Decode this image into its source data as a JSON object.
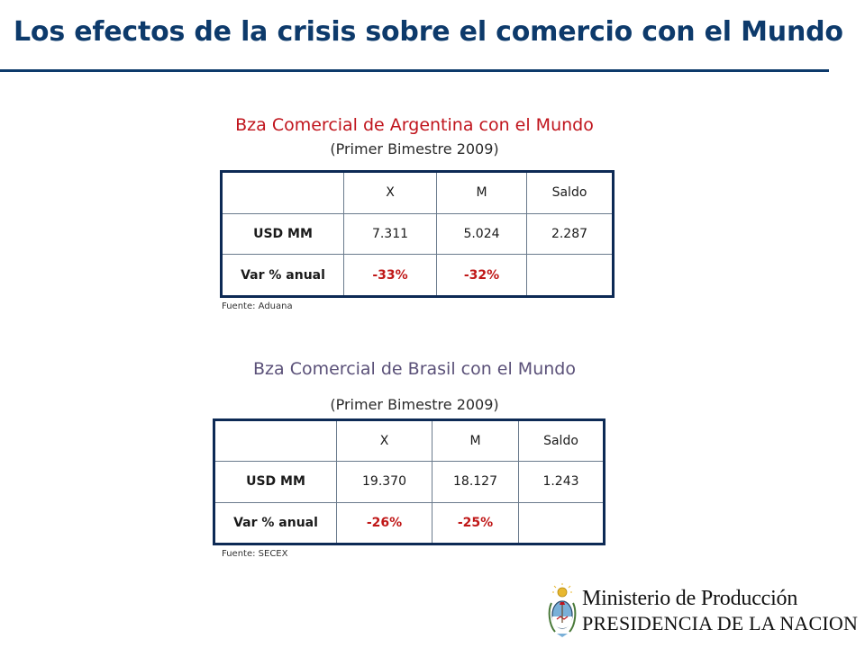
{
  "slide": {
    "title": "Los efectos de la crisis sobre el comercio con el Mundo"
  },
  "colors": {
    "title": "#0d3a6b",
    "argentina_heading": "#c0141c",
    "brasil_heading": "#5a5078",
    "negative": "#c01818"
  },
  "argentina": {
    "heading": "Bza Comercial de Argentina con el Mundo",
    "subheading": "(Primer Bimestre 2009)",
    "columns": [
      "",
      "X",
      "M",
      "Saldo"
    ],
    "rows": [
      {
        "label": "USD MM",
        "x": "7.311",
        "m": "5.024",
        "saldo": "2.287"
      },
      {
        "label": "Var % anual",
        "x": "-33%",
        "m": "-32%",
        "saldo": ""
      }
    ],
    "source": "Fuente: Aduana"
  },
  "brasil": {
    "heading": "Bza Comercial de Brasil con el Mundo",
    "subheading": "(Primer Bimestre 2009)",
    "columns": [
      "",
      "X",
      "M",
      "Saldo"
    ],
    "rows": [
      {
        "label": "USD MM",
        "x": "19.370",
        "m": "18.127",
        "saldo": "1.243"
      },
      {
        "label": "Var % anual",
        "x": "-26%",
        "m": "-25%",
        "saldo": ""
      }
    ],
    "source": "Fuente: SECEX"
  },
  "logo": {
    "line1": "Ministerio de Producción",
    "line2": "PRESIDENCIA DE LA NACION",
    "emblem_icon": "argentina-coat-of-arms-icon"
  }
}
